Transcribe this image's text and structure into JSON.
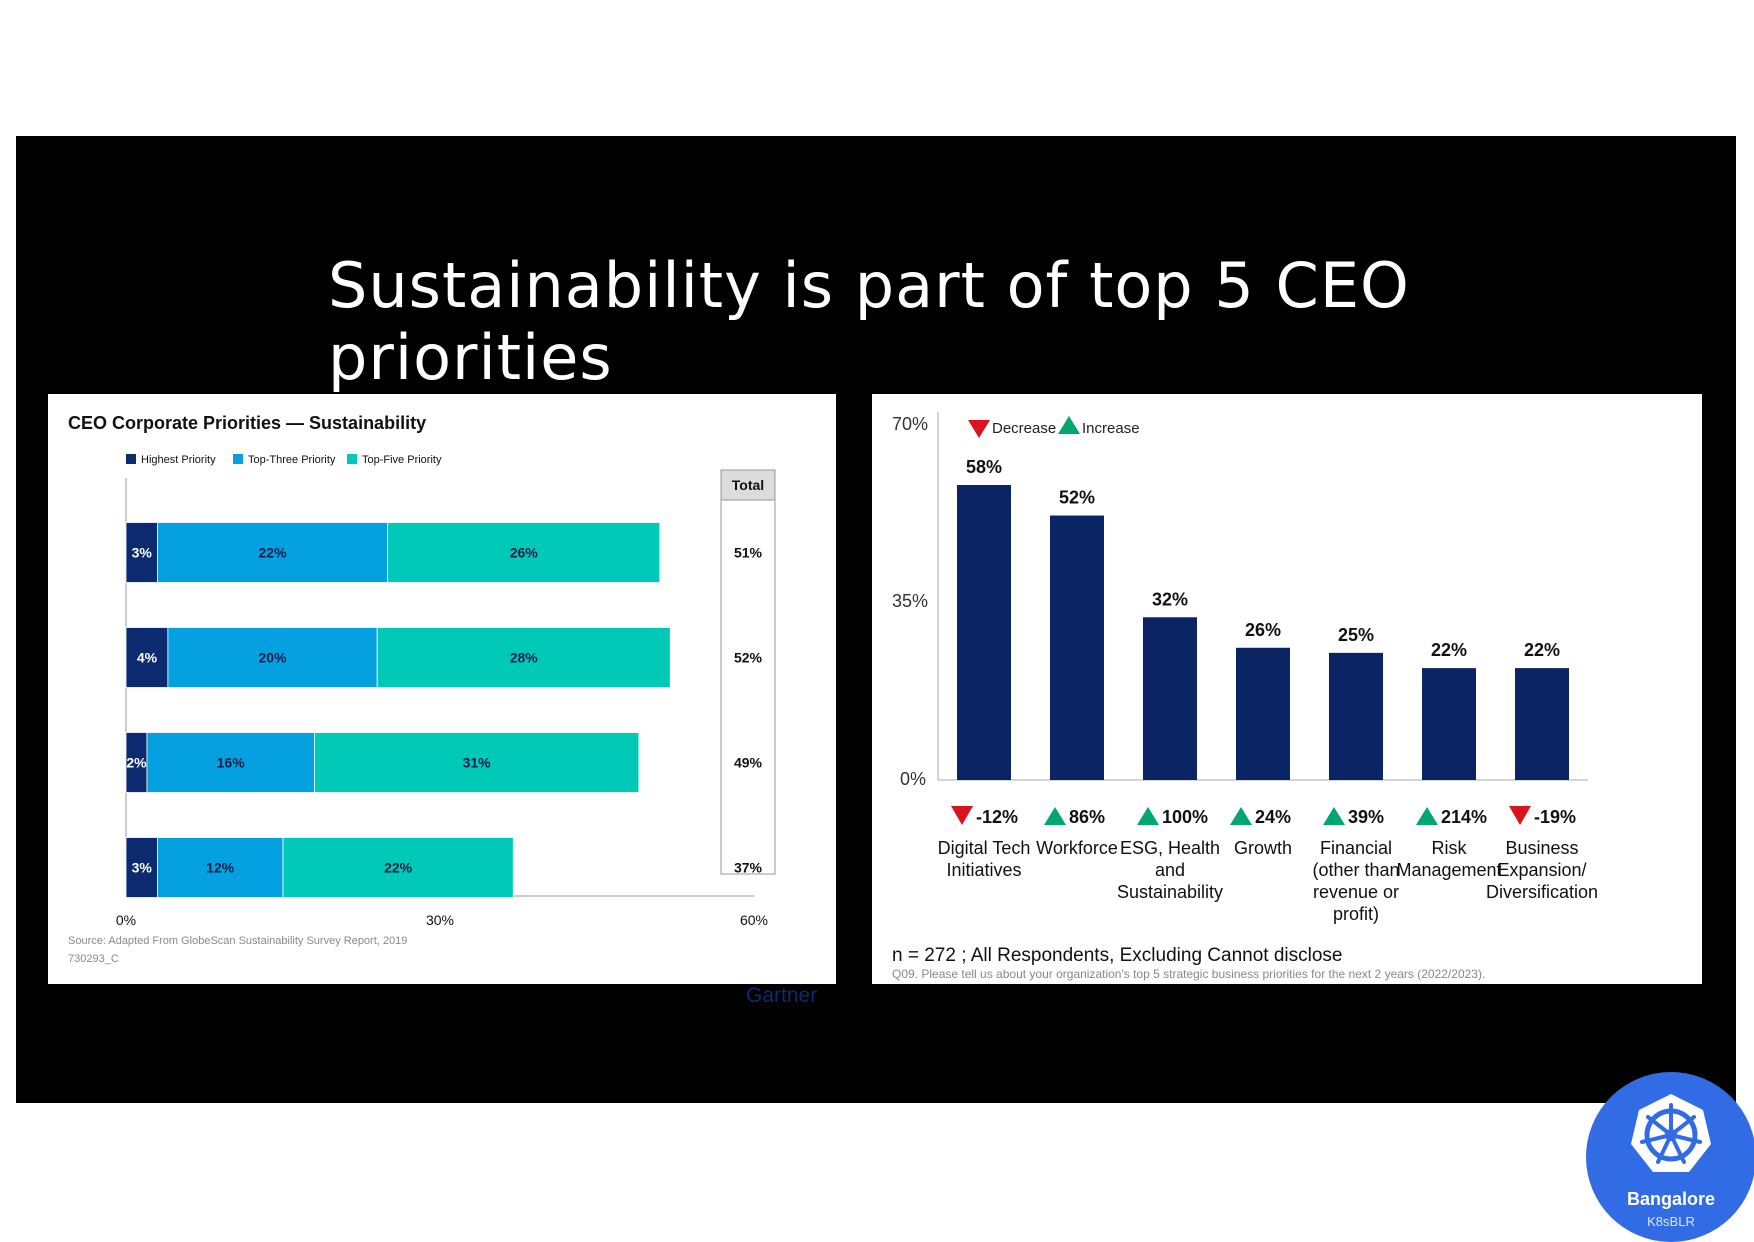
{
  "slide": {
    "title": "Sustainability is part of top 5 CEO priorities"
  },
  "colors": {
    "highest": "#0b2a6f",
    "top_three": "#05a0e0",
    "top_five": "#00c9b8",
    "right_bar": "#0b2463",
    "increase": "#00a870",
    "decrease": "#d8141c"
  },
  "left_chart": {
    "title": "CEO Corporate Priorities — Sustainability",
    "legend": [
      "Highest Priority",
      "Top-Three Priority",
      "Top-Five Priority"
    ],
    "total_header": "Total",
    "source": "Source: Adapted From GlobeScan Sustainability Survey Report, 2019",
    "code": "730293_C",
    "brand": "Gartner",
    "xticks": [
      "0%",
      "30%",
      "60%"
    ]
  },
  "right_chart": {
    "legend_decrease": "Decrease",
    "legend_increase": "Increase",
    "yticks": [
      "70%",
      "35%",
      "0%"
    ],
    "n_note": "n = 272 ; All Respondents, Excluding Cannot disclose",
    "question": "Q09. Please tell us about your organization's top 5 strategic business priorities for the next 2 years (2022/2023)."
  },
  "chart_data": [
    {
      "type": "bar",
      "orientation": "horizontal-stacked",
      "title": "CEO Corporate Priorities — Sustainability",
      "categories": [
        "",
        "",
        "",
        ""
      ],
      "series": [
        {
          "name": "Highest Priority",
          "values": [
            3,
            4,
            2,
            3
          ]
        },
        {
          "name": "Top-Three Priority",
          "values": [
            22,
            20,
            16,
            12
          ]
        },
        {
          "name": "Top-Five Priority",
          "values": [
            26,
            28,
            31,
            22
          ]
        }
      ],
      "labels": [
        [
          "3%",
          "22%",
          "26%"
        ],
        [
          "4%",
          "20%",
          "28%"
        ],
        [
          "2%",
          "16%",
          "31%"
        ],
        [
          "3%",
          "12%",
          "22%"
        ]
      ],
      "totals": [
        "51%",
        "52%",
        "49%",
        "37%"
      ],
      "xlim": [
        0,
        60
      ],
      "legend": "top"
    },
    {
      "type": "bar",
      "categories": [
        [
          "Digital Tech",
          "Initiatives"
        ],
        [
          "Workforce"
        ],
        [
          "ESG, Health",
          "and",
          "Sustainability"
        ],
        [
          "Growth"
        ],
        [
          "Financial",
          "(other than",
          "revenue or",
          "profit)"
        ],
        [
          "Risk",
          "Management"
        ],
        [
          "Business",
          "Expansion/",
          "Diversification"
        ]
      ],
      "values": [
        58,
        52,
        32,
        26,
        25,
        22,
        22
      ],
      "value_labels": [
        "58%",
        "52%",
        "32%",
        "26%",
        "25%",
        "22%",
        "22%"
      ],
      "changes": [
        {
          "direction": "decrease",
          "label": "-12%"
        },
        {
          "direction": "increase",
          "label": "86%"
        },
        {
          "direction": "increase",
          "label": "100%"
        },
        {
          "direction": "increase",
          "label": "24%"
        },
        {
          "direction": "increase",
          "label": "39%"
        },
        {
          "direction": "increase",
          "label": "214%"
        },
        {
          "direction": "decrease",
          "label": "-19%"
        }
      ],
      "ylim": [
        0,
        70
      ],
      "legend": "top-left"
    }
  ],
  "badge": {
    "icon": "kubernetes-wheel-icon",
    "name": "Bangalore",
    "sub": "K8sBLR"
  }
}
